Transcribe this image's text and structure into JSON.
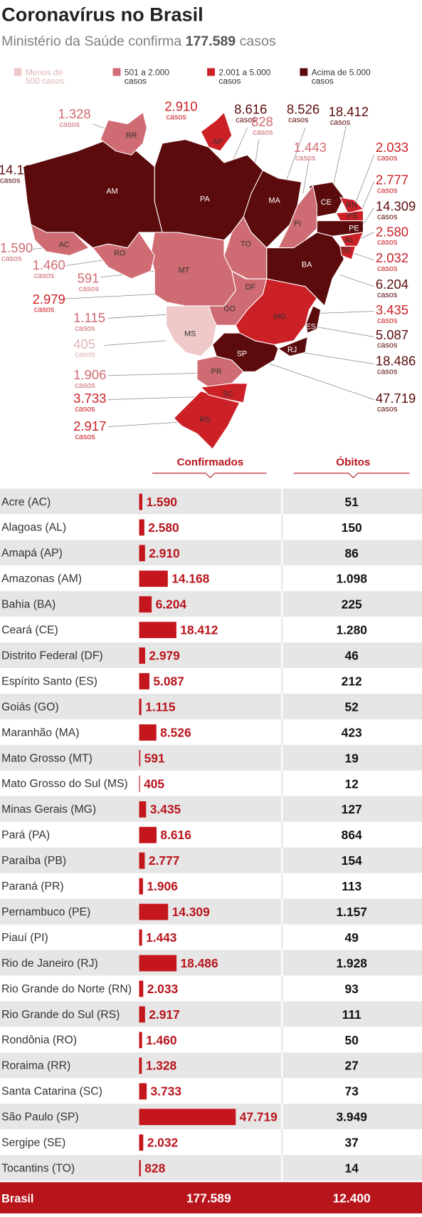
{
  "header": {
    "title": "Coronavírus no Brasil",
    "subtitle": {
      "before": "Ministério da Saúde confirma",
      "number": "177.589",
      "after": "casos"
    }
  },
  "legend": {
    "items": [
      {
        "lines": [
          "Menos de",
          "500 casos"
        ],
        "color": "#efc9c9"
      },
      {
        "lines": [
          "501 a 2.000",
          "casos"
        ],
        "color": "#cf6b72"
      },
      {
        "lines": [
          "2.001 a 5.000",
          "casos"
        ],
        "color": "#cc2027"
      },
      {
        "lines": [
          "Acima de 5.000",
          "casos"
        ],
        "color": "#5c0b0d"
      }
    ]
  },
  "map": {
    "unit": "casos"
  },
  "table": {
    "columns": [
      "Confirmados",
      "Óbitos"
    ],
    "rows": [
      {
        "state": "Acre (AC)",
        "abbr": "AC",
        "tier": 1,
        "confirmed": 1590,
        "confirmed_label": "1.590",
        "deaths": "51"
      },
      {
        "state": "Alagoas (AL)",
        "abbr": "AL",
        "tier": 2,
        "confirmed": 2580,
        "confirmed_label": "2.580",
        "deaths": "150"
      },
      {
        "state": "Amapá (AP)",
        "abbr": "AP",
        "tier": 2,
        "confirmed": 2910,
        "confirmed_label": "2.910",
        "deaths": "86"
      },
      {
        "state": "Amazonas (AM)",
        "abbr": "AM",
        "tier": 3,
        "confirmed": 14168,
        "confirmed_label": "14.168",
        "deaths": "1.098"
      },
      {
        "state": "Bahia (BA)",
        "abbr": "BA",
        "tier": 3,
        "confirmed": 6204,
        "confirmed_label": "6.204",
        "deaths": "225"
      },
      {
        "state": "Ceará (CE)",
        "abbr": "CE",
        "tier": 3,
        "confirmed": 18412,
        "confirmed_label": "18.412",
        "deaths": "1.280"
      },
      {
        "state": "Distrito Federal (DF)",
        "abbr": "DF",
        "tier": 2,
        "confirmed": 2979,
        "confirmed_label": "2.979",
        "deaths": "46"
      },
      {
        "state": "Espírito Santo (ES)",
        "abbr": "ES",
        "tier": 3,
        "confirmed": 5087,
        "confirmed_label": "5.087",
        "deaths": "212"
      },
      {
        "state": "Goiás (GO)",
        "abbr": "GO",
        "tier": 1,
        "confirmed": 1115,
        "confirmed_label": "1.115",
        "deaths": "52"
      },
      {
        "state": "Maranhão (MA)",
        "abbr": "MA",
        "tier": 3,
        "confirmed": 8526,
        "confirmed_label": "8.526",
        "deaths": "423"
      },
      {
        "state": "Mato Grosso (MT)",
        "abbr": "MT",
        "tier": 1,
        "confirmed": 591,
        "confirmed_label": "591",
        "deaths": "19"
      },
      {
        "state": "Mato Grosso do Sul (MS)",
        "abbr": "MS",
        "tier": 0,
        "confirmed": 405,
        "confirmed_label": "405",
        "deaths": "12"
      },
      {
        "state": "Minas Gerais (MG)",
        "abbr": "MG",
        "tier": 2,
        "confirmed": 3435,
        "confirmed_label": "3.435",
        "deaths": "127"
      },
      {
        "state": "Pará (PA)",
        "abbr": "PA",
        "tier": 3,
        "confirmed": 8616,
        "confirmed_label": "8.616",
        "deaths": "864"
      },
      {
        "state": "Paraíba (PB)",
        "abbr": "PB",
        "tier": 2,
        "confirmed": 2777,
        "confirmed_label": "2.777",
        "deaths": "154"
      },
      {
        "state": "Paraná (PR)",
        "abbr": "PR",
        "tier": 1,
        "confirmed": 1906,
        "confirmed_label": "1.906",
        "deaths": "113"
      },
      {
        "state": "Pernambuco (PE)",
        "abbr": "PE",
        "tier": 3,
        "confirmed": 14309,
        "confirmed_label": "14.309",
        "deaths": "1.157"
      },
      {
        "state": "Piauí (PI)",
        "abbr": "PI",
        "tier": 1,
        "confirmed": 1443,
        "confirmed_label": "1.443",
        "deaths": "49"
      },
      {
        "state": "Rio de Janeiro (RJ)",
        "abbr": "RJ",
        "tier": 3,
        "confirmed": 18486,
        "confirmed_label": "18.486",
        "deaths": "1.928"
      },
      {
        "state": "Rio Grande do Norte (RN)",
        "abbr": "RN",
        "tier": 2,
        "confirmed": 2033,
        "confirmed_label": "2.033",
        "deaths": "93"
      },
      {
        "state": "Rio Grande do Sul (RS)",
        "abbr": "RS",
        "tier": 2,
        "confirmed": 2917,
        "confirmed_label": "2.917",
        "deaths": "111"
      },
      {
        "state": "Rondônia (RO)",
        "abbr": "RO",
        "tier": 1,
        "confirmed": 1460,
        "confirmed_label": "1.460",
        "deaths": "50"
      },
      {
        "state": "Roraima (RR)",
        "abbr": "RR",
        "tier": 1,
        "confirmed": 1328,
        "confirmed_label": "1.328",
        "deaths": "27"
      },
      {
        "state": "Santa Catarina (SC)",
        "abbr": "SC",
        "tier": 2,
        "confirmed": 3733,
        "confirmed_label": "3.733",
        "deaths": "73"
      },
      {
        "state": "São Paulo (SP)",
        "abbr": "SP",
        "tier": 3,
        "confirmed": 47719,
        "confirmed_label": "47.719",
        "deaths": "3.949"
      },
      {
        "state": "Sergipe (SE)",
        "abbr": "SE",
        "tier": 2,
        "confirmed": 2032,
        "confirmed_label": "2.032",
        "deaths": "37"
      },
      {
        "state": "Tocantins (TO)",
        "abbr": "TO",
        "tier": 1,
        "confirmed": 828,
        "confirmed_label": "828",
        "deaths": "14"
      }
    ],
    "total": {
      "state": "Brasil",
      "confirmed": "177.589",
      "deaths": "12.400"
    }
  }
}
